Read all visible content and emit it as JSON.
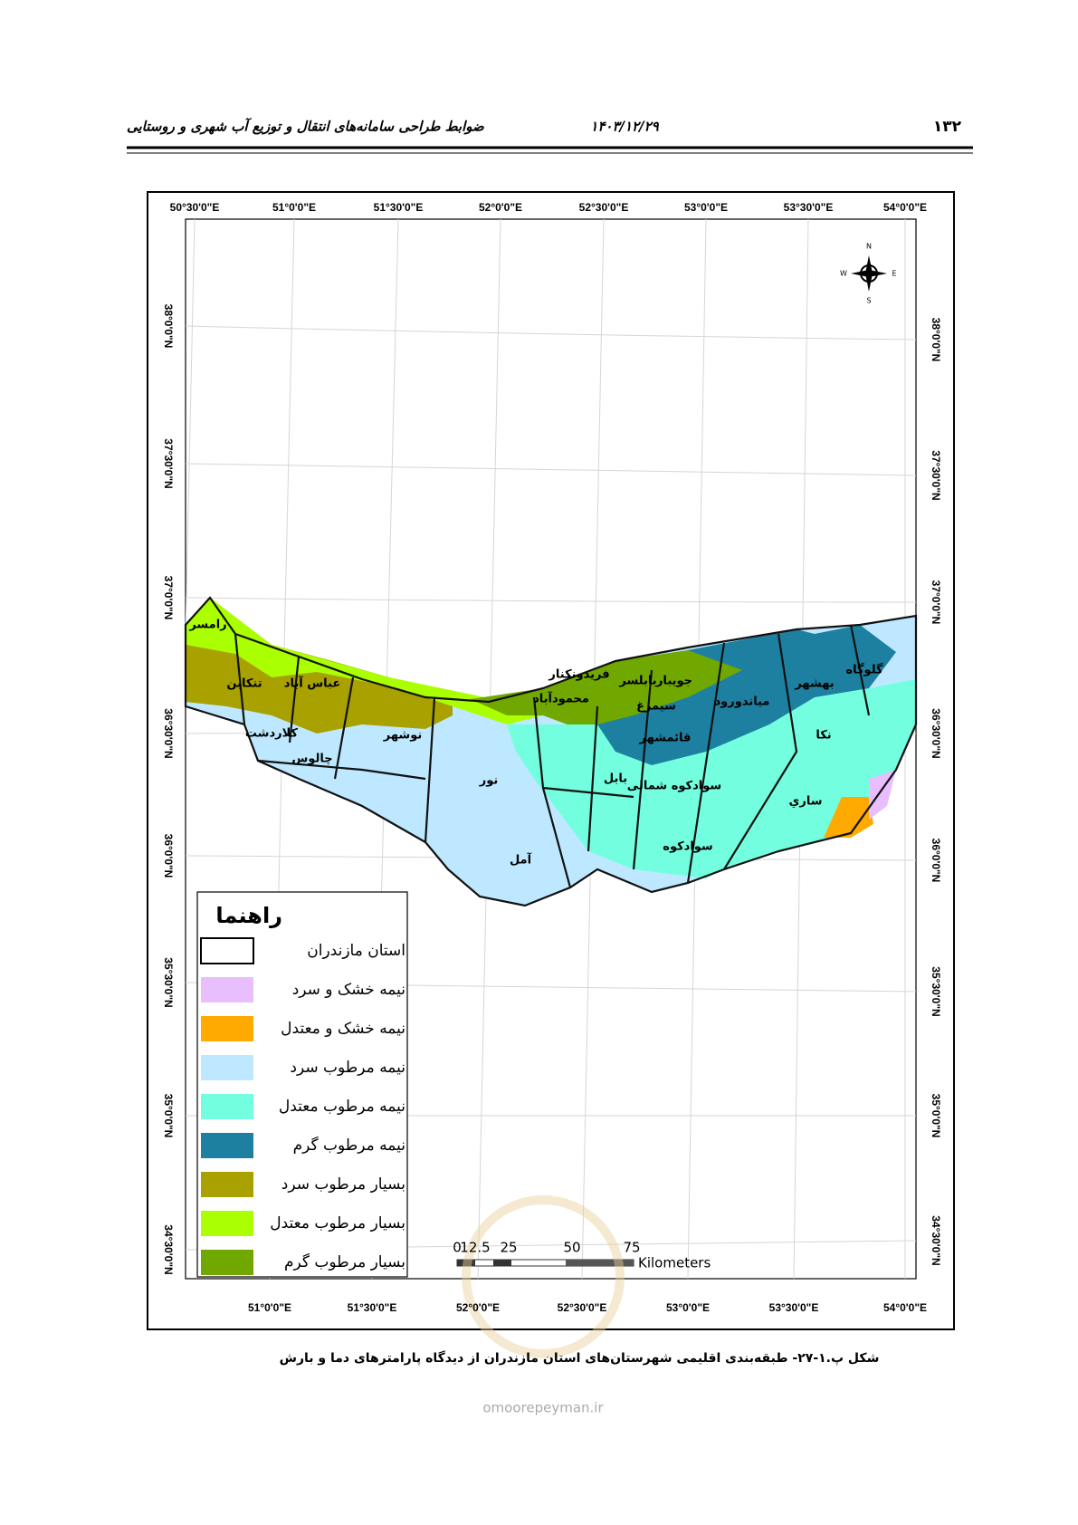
{
  "header": {
    "page_number": "۱۳۲",
    "date": "۱۴۰۳/۱۲/۲۹",
    "title": "ضوابط طراحی سامانه‌های انتقال و توزیع آب شهری و روستایی"
  },
  "map": {
    "lon_labels_top": [
      "50°30'0\"E",
      "51°0'0\"E",
      "51°30'0\"E",
      "52°0'0\"E",
      "52°30'0\"E",
      "53°0'0\"E",
      "53°30'0\"E",
      "54°0'0\"E"
    ],
    "lon_labels_bottom": [
      "51°0'0\"E",
      "51°30'0\"E",
      "52°0'0\"E",
      "52°30'0\"E",
      "53°0'0\"E",
      "53°30'0\"E",
      "54°0'0\"E"
    ],
    "lat_labels_left": [
      "38°0'0\"N",
      "37°30'0\"N",
      "37°0'0\"N",
      "36°30'0\"N",
      "36°0'0\"N",
      "35°30'0\"N",
      "35°0'0\"N",
      "34°30'0\"N"
    ],
    "lat_labels_right": [
      "38°0'0\"N",
      "37°30'0\"N",
      "37°0'0\"N",
      "36°30'0\"N",
      "36°0'0\"N",
      "35°30'0\"N",
      "35°0'0\"N",
      "34°30'0\"N"
    ],
    "compass": {
      "n": "N",
      "e": "E",
      "s": "S",
      "w": "W"
    },
    "places": [
      "رامسر",
      "تنکابن",
      "عباس آباد",
      "کلاردشت",
      "چالوس",
      "نوشهر",
      "نور",
      "آمل",
      "محمودآباد",
      "فریدونکنار",
      "بابلسر",
      "جویبار",
      "سیمرغ",
      "قائمشهر",
      "بابل",
      "سوادکوه شمالی",
      "سوادکوه",
      "میاندورود",
      "ساري",
      "نکا",
      "بهشهر",
      "گلوگاه"
    ],
    "legend": {
      "title": "راهنما",
      "items": [
        {
          "label": "استان مازندران",
          "color": "#ffffff"
        },
        {
          "label": "نیمه خشک و سرد",
          "color": "#e8beff"
        },
        {
          "label": "نیمه خشک و معتدل",
          "color": "#ffaa00"
        },
        {
          "label": "نیمه مرطوب سرد",
          "color": "#bee8ff"
        },
        {
          "label": "نیمه مرطوب معتدل",
          "color": "#73ffdf"
        },
        {
          "label": "نیمه مرطوب گرم",
          "color": "#1d80a0"
        },
        {
          "label": "بسیار مرطوب سرد",
          "color": "#a8a100"
        },
        {
          "label": "بسیار مرطوب معتدل",
          "color": "#aaff00"
        },
        {
          "label": "بسیار مرطوب گرم",
          "color": "#70a800"
        }
      ]
    },
    "scale_bar": {
      "ticks": [
        "0",
        "12.5",
        "25",
        "50",
        "75"
      ],
      "unit": "Kilometers"
    }
  },
  "caption": "شکل پ.۱-۲۷- طبقه‌بندی اقلیمی شهرستان‌های استان مازندران از دیدگاه پارامترهای دما و بارش",
  "watermark": "omoorepeyman.ir"
}
